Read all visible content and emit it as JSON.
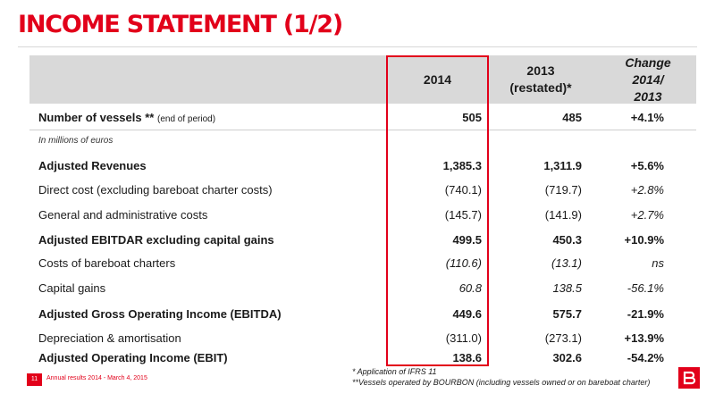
{
  "title": "INCOME STATEMENT (1/2)",
  "columns": {
    "y2014": "2014",
    "y2013_line1": "2013",
    "y2013_line2": "(restated)*",
    "change_line1": "Change",
    "change_line2": "2014/",
    "change_line3": "2013"
  },
  "vessels": {
    "label": "Number of vessels",
    "label_suffix": "**",
    "note": "(end of period)",
    "v2014": "505",
    "v2013": "485",
    "change": "+4.1%"
  },
  "units_note": "In millions of euros",
  "rows": [
    {
      "label": "Adjusted Revenues",
      "v2014": "1,385.3",
      "v2013": "1,311.9",
      "change": "+5.6%"
    },
    {
      "label": "Direct cost (excluding bareboat charter costs)",
      "v2014": "(740.1)",
      "v2013": "(719.7)",
      "change": "+2.8%"
    },
    {
      "label": "General and administrative costs",
      "v2014": "(145.7)",
      "v2013": "(141.9)",
      "change": "+2.7%"
    },
    {
      "label": "Adjusted EBITDAR excluding capital gains",
      "v2014": "499.5",
      "v2013": "450.3",
      "change": "+10.9%"
    },
    {
      "label": "Costs of bareboat charters",
      "v2014": "(110.6)",
      "v2013": "(13.1)",
      "change": "ns"
    },
    {
      "label": "Capital gains",
      "v2014": "60.8",
      "v2013": "138.5",
      "change": "-56.1%"
    },
    {
      "label": "Adjusted Gross Operating Income (EBITDA)",
      "v2014": "449.6",
      "v2013": "575.7",
      "change": "-21.9%"
    },
    {
      "label": "Depreciation & amortisation",
      "v2014": "(311.0)",
      "v2013": "(273.1)",
      "change": "+13.9%"
    },
    {
      "label": "Adjusted Operating Income (EBIT)",
      "v2014": "138.6",
      "v2013": "302.6",
      "change": "-54.2%"
    }
  ],
  "footnotes": {
    "note1": "* Application of IFRS 11",
    "note2": "**Vessels operated by BOURBON (including vessels owned or on bareboat charter)"
  },
  "footer": {
    "page_number": "11",
    "text": "Annual results 2014 - March 4, 2015"
  },
  "colors": {
    "accent": "#e2001a",
    "header_band": "#d9d9d9"
  }
}
